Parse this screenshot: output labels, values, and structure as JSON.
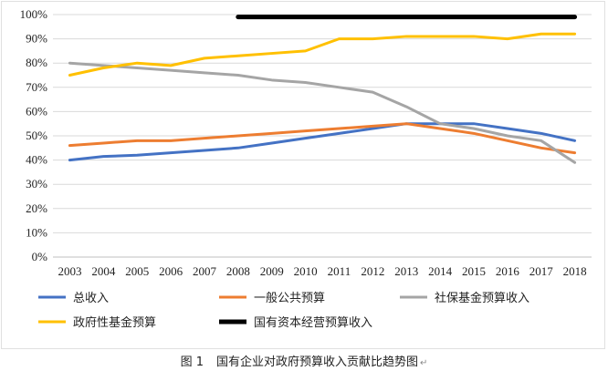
{
  "chart_data": {
    "type": "line",
    "title": "",
    "xlabel": "",
    "ylabel": "",
    "categories": [
      "2003",
      "2004",
      "2005",
      "2006",
      "2007",
      "2008",
      "2009",
      "2010",
      "2011",
      "2012",
      "2013",
      "2014",
      "2015",
      "2016",
      "2017",
      "2018"
    ],
    "ylim": [
      0,
      100
    ],
    "y_ticks": [
      "0%",
      "10%",
      "20%",
      "30%",
      "40%",
      "50%",
      "60%",
      "70%",
      "80%",
      "90%",
      "100%"
    ],
    "grid": true,
    "legend_position": "bottom",
    "series": [
      {
        "name": "总收入",
        "color": "#4472C4",
        "values": [
          40,
          41.5,
          42,
          43,
          44,
          45,
          47,
          49,
          51,
          53,
          55,
          55,
          55,
          53,
          51,
          48
        ]
      },
      {
        "name": "一般公共预算",
        "color": "#ED7D31",
        "values": [
          46,
          47,
          48,
          48,
          49,
          50,
          51,
          52,
          53,
          54,
          55,
          53,
          51,
          48,
          45,
          43
        ]
      },
      {
        "name": "社保基金预算收入",
        "color": "#A5A5A5",
        "values": [
          80,
          79,
          78,
          77,
          76,
          75,
          73,
          72,
          70,
          68,
          62,
          55,
          53,
          50,
          48,
          39
        ]
      },
      {
        "name": "政府性基金预算",
        "color": "#FFC000",
        "values": [
          75,
          78,
          80,
          79,
          82,
          83,
          84,
          85,
          90,
          90,
          91,
          91,
          91,
          90,
          92,
          92
        ]
      },
      {
        "name": "国有资本经营预算收入",
        "color": "#000000",
        "values": [
          null,
          null,
          null,
          null,
          null,
          99,
          99,
          99,
          99,
          99,
          99,
          99,
          99,
          99,
          99,
          99
        ]
      }
    ]
  },
  "caption": {
    "figure_number": "图 1",
    "text": "国有企业对政府预算收入贡献比趋势图",
    "return_mark": "↵"
  }
}
